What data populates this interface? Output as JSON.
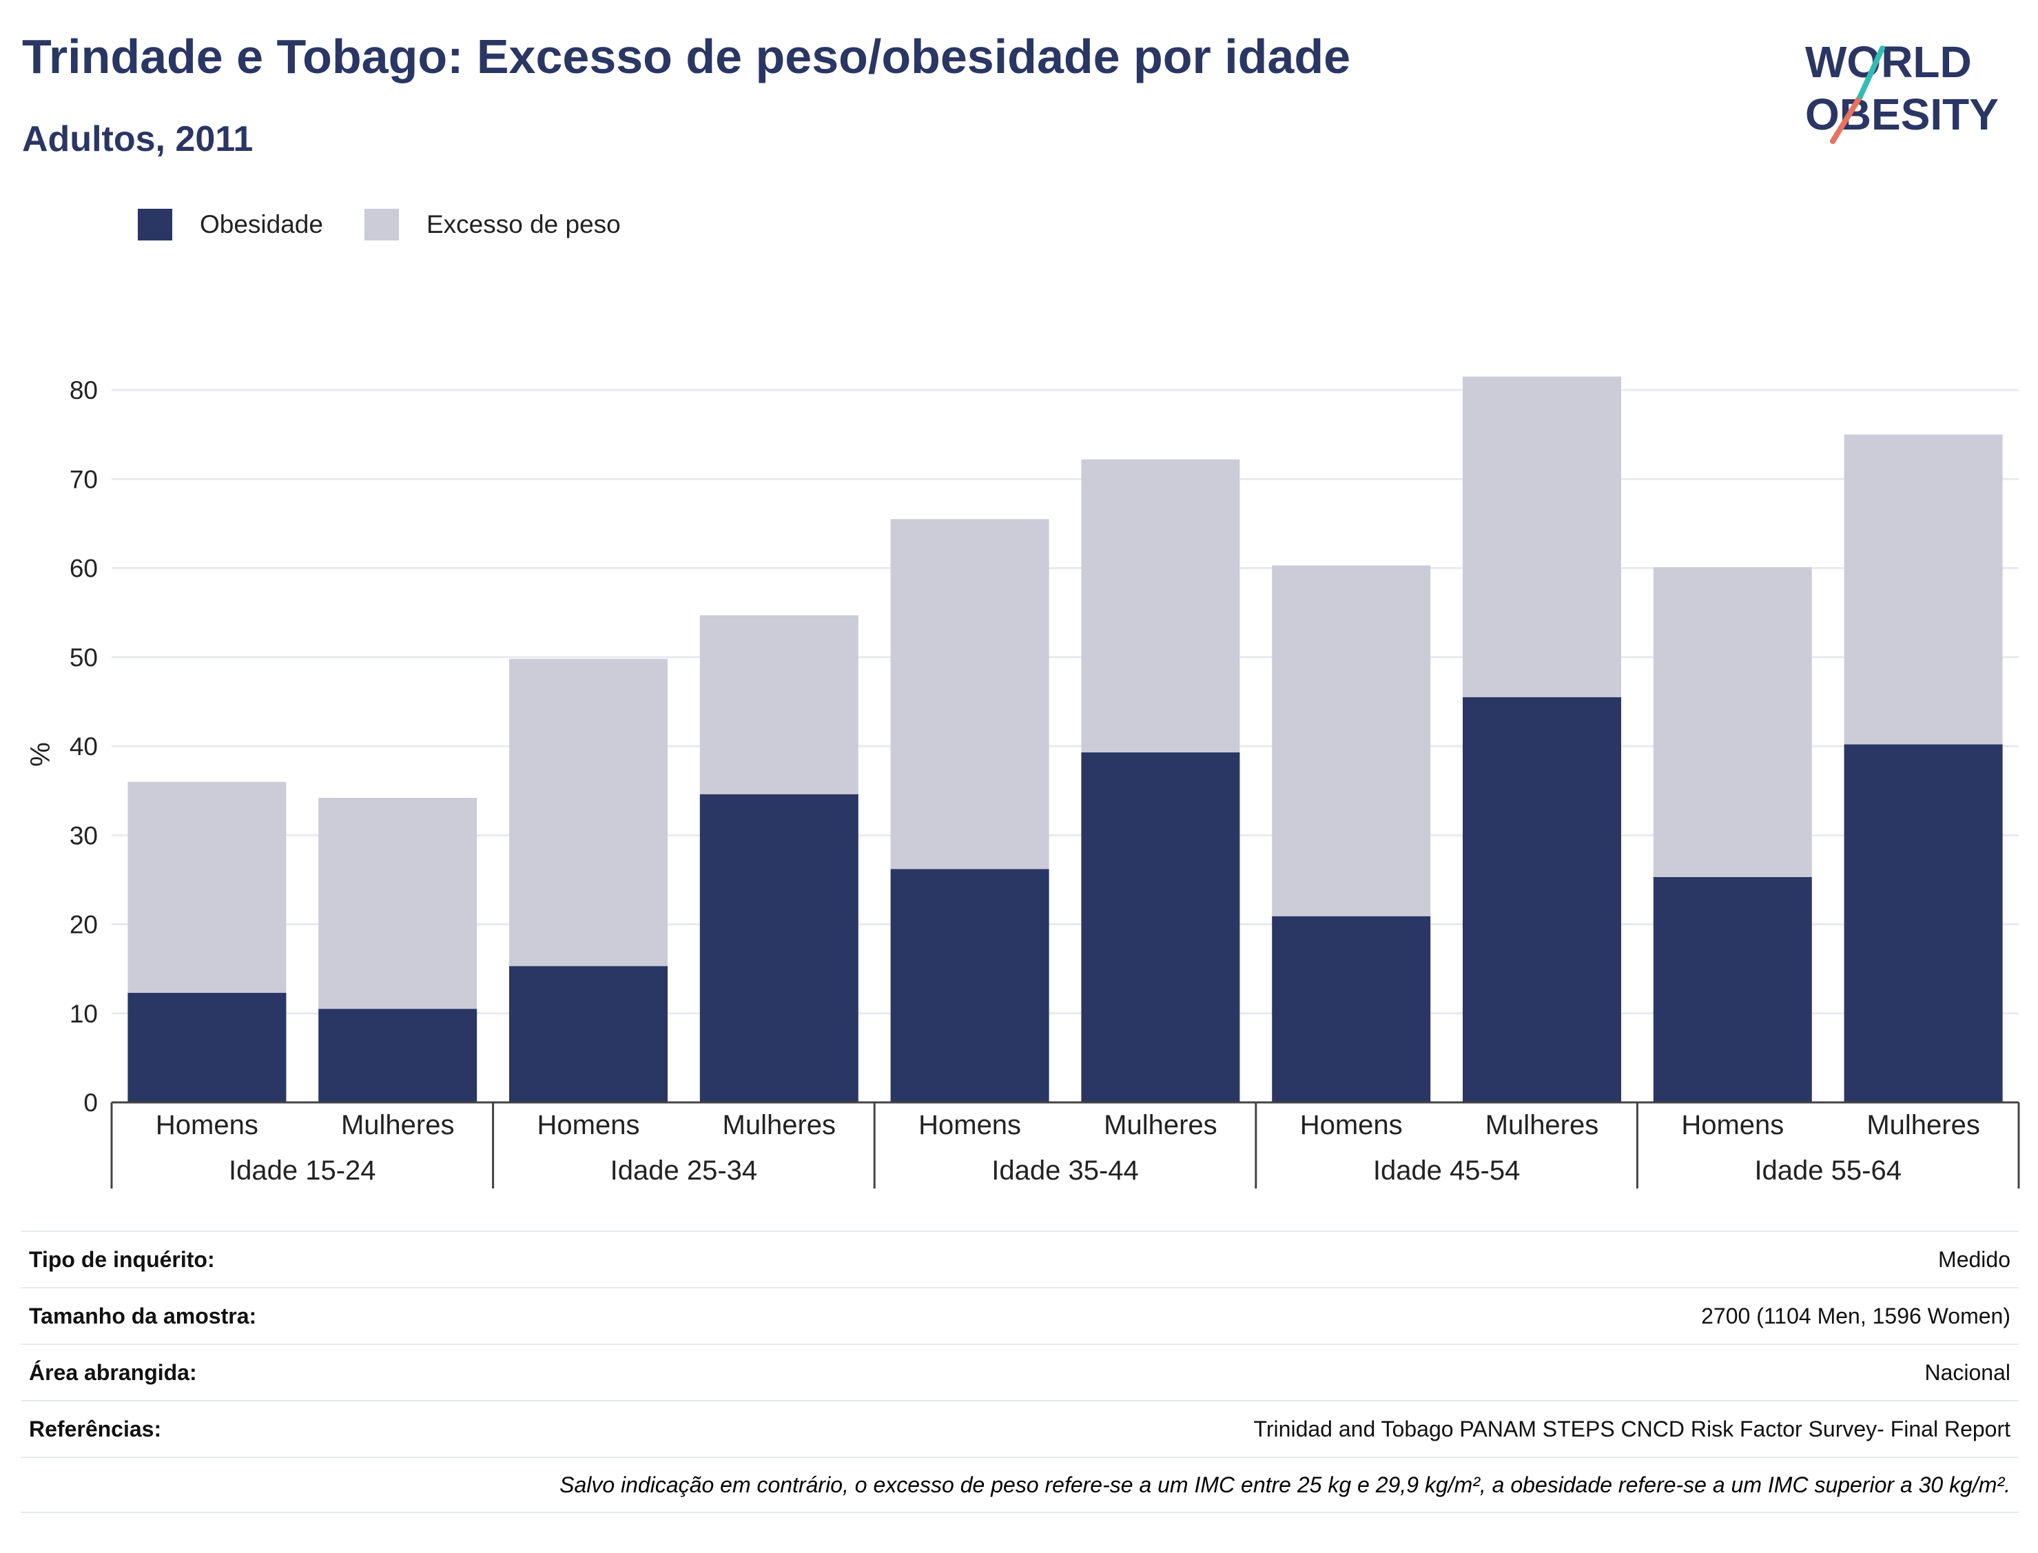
{
  "title": "Trindade e Tobago: Excesso de peso/obesidade por idade",
  "subtitle": "Adultos, 2011",
  "logo": {
    "line1": "WORLD",
    "line2": "OBESITY"
  },
  "colors": {
    "obesity": "#2a3663",
    "overweight": "#cbccd8",
    "title": "#2a3663",
    "grid": "#e8eaf0"
  },
  "chart_data": {
    "type": "bar",
    "stacked": true,
    "ylabel": "%",
    "ylim": [
      0,
      80
    ],
    "yticks": [
      0,
      10,
      20,
      30,
      40,
      50,
      60,
      70,
      80
    ],
    "legend_position": "top-left",
    "groups": [
      {
        "label": "Idade 15-24",
        "bars": [
          {
            "label": "Homens",
            "obesity": 12.3,
            "overweight": 23.7
          },
          {
            "label": "Mulheres",
            "obesity": 10.5,
            "overweight": 23.7
          }
        ]
      },
      {
        "label": "Idade 25-34",
        "bars": [
          {
            "label": "Homens",
            "obesity": 15.3,
            "overweight": 34.5
          },
          {
            "label": "Mulheres",
            "obesity": 34.6,
            "overweight": 20.1
          }
        ]
      },
      {
        "label": "Idade 35-44",
        "bars": [
          {
            "label": "Homens",
            "obesity": 26.2,
            "overweight": 39.3
          },
          {
            "label": "Mulheres",
            "obesity": 39.3,
            "overweight": 32.9
          }
        ]
      },
      {
        "label": "Idade 45-54",
        "bars": [
          {
            "label": "Homens",
            "obesity": 20.9,
            "overweight": 39.4
          },
          {
            "label": "Mulheres",
            "obesity": 45.5,
            "overweight": 36.0
          }
        ]
      },
      {
        "label": "Idade 55-64",
        "bars": [
          {
            "label": "Homens",
            "obesity": 25.3,
            "overweight": 34.8
          },
          {
            "label": "Mulheres",
            "obesity": 40.2,
            "overweight": 34.8
          }
        ]
      }
    ],
    "series": [
      {
        "name": "Obesidade"
      },
      {
        "name": "Excesso de peso"
      }
    ]
  },
  "info": [
    {
      "label": "Tipo de inquérito:",
      "value": "Medido"
    },
    {
      "label": "Tamanho da amostra:",
      "value": "2700 (1104 Men, 1596 Women)"
    },
    {
      "label": "Área abrangida:",
      "value": "Nacional"
    },
    {
      "label": "Referências:",
      "value": "Trinidad and Tobago PANAM STEPS CNCD Risk Factor Survey- Final Report"
    }
  ],
  "note": "Salvo indicação em contrário, o excesso de peso refere-se a um IMC entre 25 kg e 29,9 kg/m², a obesidade refere-se a um IMC superior a 30 kg/m²."
}
